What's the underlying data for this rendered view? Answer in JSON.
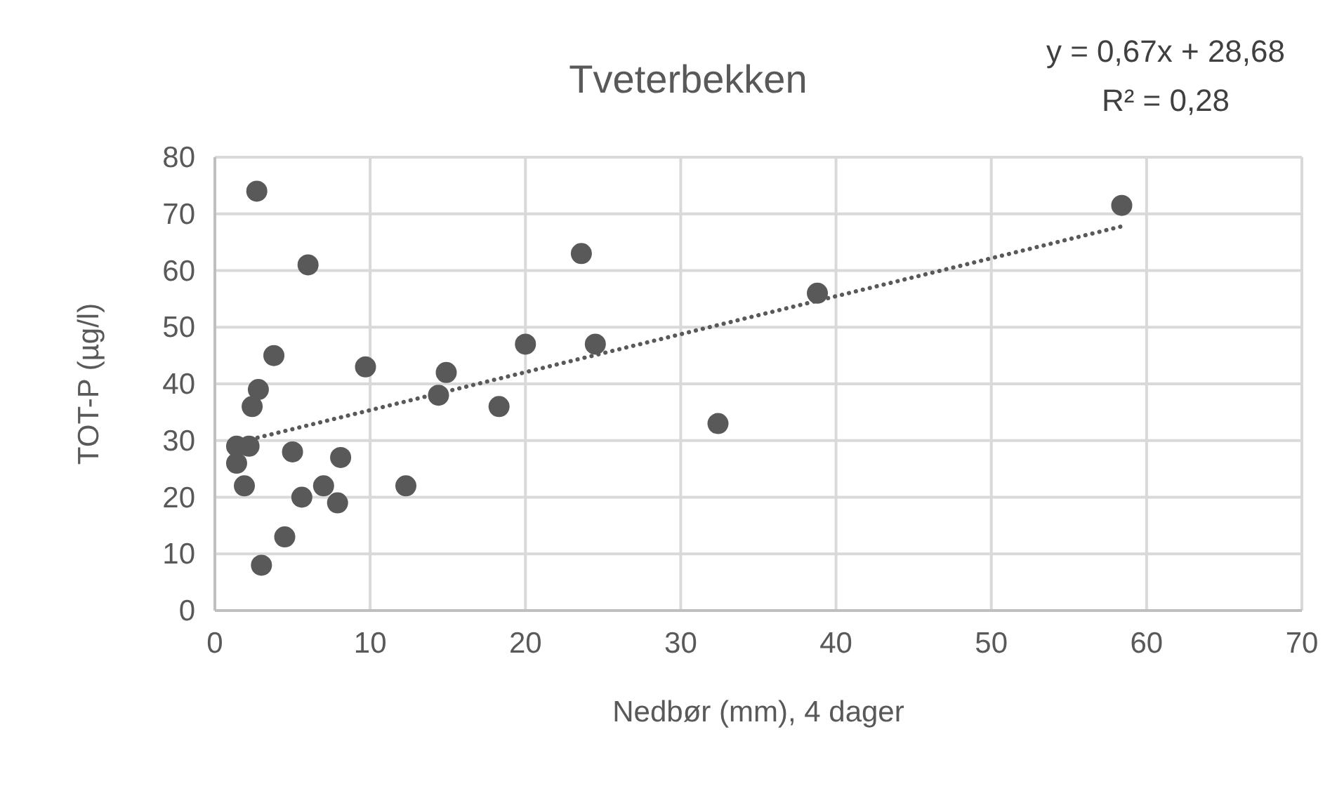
{
  "chart_data": {
    "type": "scatter",
    "title": "Tveterbekken",
    "xlabel": "Nedbør (mm), 4 dager",
    "ylabel": "TOT-P (µg/l)",
    "annotations": [
      "y = 0,67x + 28,68",
      "R² = 0,28"
    ],
    "xlim": [
      0,
      70
    ],
    "xticks": [
      0,
      10,
      20,
      30,
      40,
      50,
      60,
      70
    ],
    "ylim": [
      0,
      80
    ],
    "yticks": [
      0,
      10,
      20,
      30,
      40,
      50,
      60,
      70,
      80
    ],
    "grid": true,
    "series": [
      {
        "color": "#595959",
        "marker": "circle",
        "x": [
          2.7,
          6,
          3.8,
          2.8,
          2.4,
          1.4,
          2.2,
          1.4,
          1.9,
          5,
          5.6,
          7,
          8.1,
          7.9,
          4.5,
          3,
          9.7,
          12.3,
          14.4,
          14.9,
          18.3,
          20,
          23.6,
          24.5,
          32.4,
          38.8,
          58.4
        ],
        "values": [
          74,
          61,
          45,
          39,
          36,
          29,
          29,
          26,
          22,
          28,
          20,
          22,
          27,
          19,
          13,
          8,
          43,
          22,
          38,
          42,
          36,
          47,
          63,
          47,
          33,
          56,
          71.5
        ]
      },
      {
        "type": "line",
        "color": "#595959",
        "line_style": "dotted",
        "marker": "none",
        "x": [
          1.4,
          58.4
        ],
        "values": [
          29.6,
          67.8
        ]
      }
    ]
  }
}
